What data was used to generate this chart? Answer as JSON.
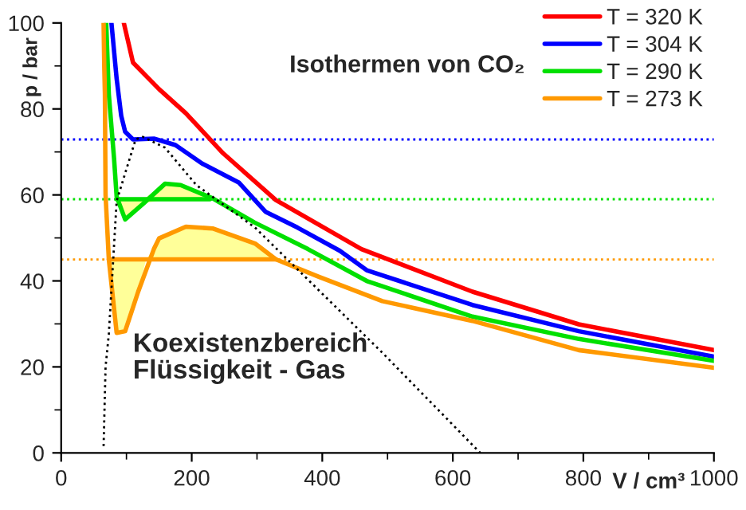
{
  "chart_data": {
    "type": "line",
    "title": "Isothermen von CO₂",
    "xlabel": "V / cm³",
    "ylabel": "p / bar",
    "xlim": [
      0,
      1000
    ],
    "xticks": [
      0,
      200,
      400,
      600,
      800,
      1000
    ],
    "ylim": [
      0,
      100
    ],
    "yticks": [
      0,
      20,
      40,
      60,
      80,
      100
    ],
    "grid": false,
    "legend": "top right",
    "line_style": "solid",
    "marker": "none",
    "annotations": [
      "Koexistenzbereich\nFlüssigkeit - Gas"
    ],
    "ref_lines": [
      {
        "axis": "y",
        "value": 72.9,
        "color": "#0000ff",
        "line_style": "dotted"
      },
      {
        "axis": "y",
        "value": 59,
        "color": "#00e000",
        "line_style": "dotted"
      },
      {
        "axis": "y",
        "value": 45,
        "color": "#ff9900",
        "line_style": "dotted"
      }
    ],
    "series": [
      {
        "name": "T = 320 K",
        "color": "#ff0000",
        "x": [
          96,
          110,
          150,
          191,
          248,
          329,
          460,
          630,
          793,
          1000
        ],
        "values": [
          100,
          90.8,
          84.6,
          79,
          69.7,
          58.8,
          47.4,
          37.5,
          29.9,
          23.9
        ]
      },
      {
        "name": "T = 304 K",
        "color": "#0000ff",
        "x": [
          77,
          85,
          92,
          98,
          110,
          142,
          175,
          216,
          272,
          313,
          362,
          427,
          468,
          630,
          793,
          1000
        ],
        "values": [
          100,
          87,
          78.4,
          74.7,
          72.9,
          73.1,
          71.6,
          67.3,
          62.9,
          56.1,
          52.4,
          47,
          42.5,
          34.4,
          28.3,
          22.4
        ]
      },
      {
        "name": "T = 290 K",
        "color": "#00e000",
        "x": [
          69,
          73,
          81,
          85,
          98,
          126,
          159,
          183,
          232,
          296,
          378,
          468,
          630,
          793,
          1000
        ],
        "values": [
          100,
          83.4,
          68.5,
          59.6,
          54.3,
          58,
          62.6,
          62.3,
          59.2,
          53.6,
          47.4,
          40,
          31.7,
          26.5,
          21.4
        ]
      },
      {
        "name": "T = 273 K",
        "color": "#ff9900",
        "x": [
          65,
          66,
          67,
          68,
          73,
          85,
          98,
          118,
          142,
          150,
          191,
          232,
          297,
          329,
          394,
          492,
          630,
          793,
          1000
        ],
        "values": [
          100,
          90,
          83.4,
          60,
          45,
          27.9,
          28.3,
          37.5,
          47.4,
          49.9,
          52.6,
          52.2,
          48.7,
          45,
          41,
          35.3,
          30.7,
          23.9,
          19.8
        ]
      },
      {
        "color": "#00e000",
        "x": [
          85,
          98,
          126,
          159,
          183,
          228
        ],
        "values": [
          59,
          59,
          59,
          59,
          59,
          59
        ],
        "lower": [
          59,
          54.3,
          58,
          59,
          59,
          59
        ],
        "upper": [
          59,
          59,
          59,
          62.6,
          62.3,
          59
        ]
      },
      {
        "color": "#ff9900",
        "x": [
          73,
          85,
          98,
          118,
          130,
          142,
          150,
          191,
          232,
          297,
          329
        ],
        "values": [
          45,
          45,
          45,
          45,
          45,
          45,
          45,
          45,
          45,
          45,
          45
        ],
        "lower": [
          45,
          27.9,
          28.3,
          37.5,
          45,
          45,
          45,
          45,
          45,
          45,
          45
        ],
        "upper": [
          45,
          45,
          45,
          45,
          45,
          47.4,
          49.9,
          52.6,
          52.2,
          48.7,
          45
        ]
      },
      {
        "color": "#000000",
        "line_style": "dotted",
        "x": [
          65,
          68,
          73,
          85,
          114,
          125,
          159,
          207,
          297,
          492,
          642
        ],
        "values": [
          1.6,
          20,
          27.6,
          58.6,
          72.9,
          73.5,
          71,
          62.3,
          52.4,
          23.3,
          0
        ]
      }
    ]
  }
}
